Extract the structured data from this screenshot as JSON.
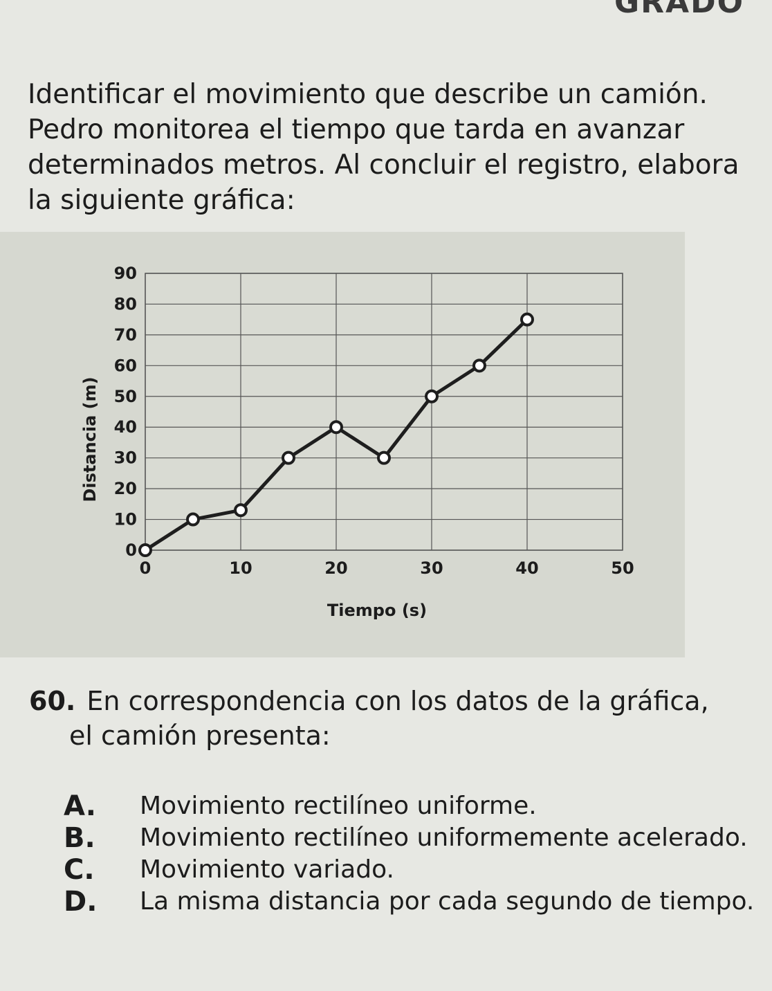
{
  "header": {
    "fragment": "GRADO"
  },
  "intro": {
    "text": "Identificar el movimiento que describe un camión. Pedro monitorea el tiempo que tarda en avanzar determinados metros. Al concluir el registro, elabora la siguiente gráfica:"
  },
  "chart_data": {
    "type": "line",
    "xlabel": "Tiempo (s)",
    "ylabel": "Distancia (m)",
    "xlim": [
      0,
      50
    ],
    "ylim": [
      0,
      90
    ],
    "x_ticks": [
      "0",
      "10",
      "20",
      "30",
      "40",
      "50"
    ],
    "y_ticks": [
      "0",
      "10",
      "20",
      "30",
      "40",
      "50",
      "60",
      "70",
      "80",
      "90"
    ],
    "grid": true,
    "series": [
      {
        "x": [
          0,
          5,
          10,
          15,
          20,
          25,
          30,
          35,
          40
        ],
        "y": [
          0,
          10,
          13,
          30,
          40,
          30,
          50,
          60,
          75
        ]
      }
    ],
    "colors": {
      "line": "#1e1e1e",
      "marker_fill": "#ffffff",
      "grid": "#555555"
    }
  },
  "question": {
    "number": "60.",
    "line1": "En correspondencia con los datos de la gráfica,",
    "line2": "el camión presenta:"
  },
  "options": [
    {
      "letter": "A.",
      "text": "Movimiento rectilíneo uniforme."
    },
    {
      "letter": "B.",
      "text": "Movimiento rectilíneo uniformemente acelerado."
    },
    {
      "letter": "C.",
      "text": "Movimiento variado."
    },
    {
      "letter": "D.",
      "text": "La misma distancia por cada segundo de tiempo."
    }
  ]
}
